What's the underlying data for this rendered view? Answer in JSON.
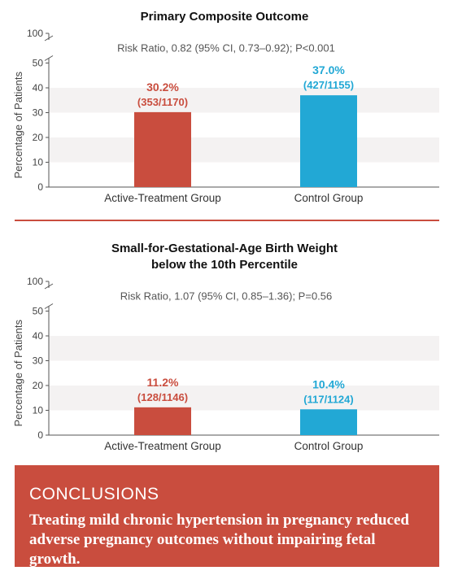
{
  "chart_data": [
    {
      "type": "bar",
      "title": "Primary Composite Outcome",
      "subtitle": "Risk Ratio, 0.82 (95% CI, 0.73–0.92); P<0.001",
      "ylabel": "Percentage of Patients",
      "ylim": [
        0,
        50
      ],
      "axis_break_label": "100",
      "yticks": [
        "0",
        "10",
        "20",
        "30",
        "40",
        "50"
      ],
      "grid": "alternating bands",
      "categories": [
        "Active-Treatment Group",
        "Control Group"
      ],
      "values": [
        30.2,
        37.0
      ],
      "value_labels": [
        "30.2%",
        "37.0%"
      ],
      "count_labels": [
        "(353/1170)",
        "(427/1155)"
      ],
      "colors": [
        "#c94d3e",
        "#22a8d5"
      ]
    },
    {
      "type": "bar",
      "title": "Small-for-Gestational-Age Birth Weight\nbelow the 10th Percentile",
      "subtitle": "Risk Ratio, 1.07 (95% CI, 0.85–1.36); P=0.56",
      "ylabel": "Percentage of Patients",
      "ylim": [
        0,
        50
      ],
      "axis_break_label": "100",
      "yticks": [
        "0",
        "10",
        "20",
        "30",
        "40",
        "50"
      ],
      "grid": "alternating bands",
      "categories": [
        "Active-Treatment Group",
        "Control Group"
      ],
      "values": [
        11.2,
        10.4
      ],
      "value_labels": [
        "11.2%",
        "10.4%"
      ],
      "count_labels": [
        "(128/1146)",
        "(117/1124)"
      ],
      "colors": [
        "#c94d3e",
        "#22a8d5"
      ]
    }
  ],
  "conclusions": {
    "heading": "CONCLUSIONS",
    "text": "Treating mild chronic hypertension in pregnancy reduced adverse pregnancy outcomes without impairing fetal growth."
  }
}
